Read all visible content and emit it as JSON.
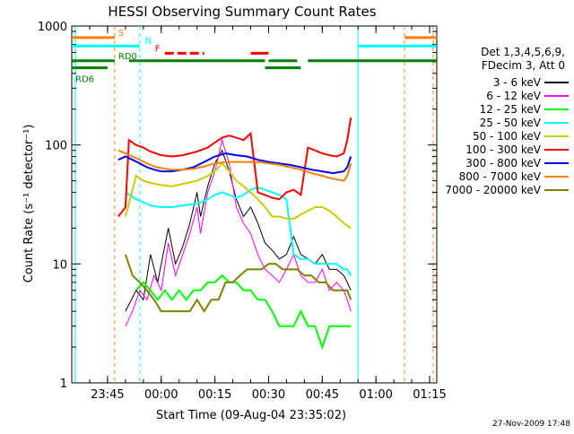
{
  "chart_data": {
    "type": "line",
    "title": "HESSI Observing Summary Count Rates",
    "xlabel": "Start Time (09-Aug-04 23:35:02)",
    "ylabel": "Count Rate (s⁻¹ detector⁻¹)",
    "y_scale": "log",
    "xlim_minutes": [
      0,
      102
    ],
    "ylim": [
      1,
      1000
    ],
    "x_ticks": [
      {
        "label": "23:45",
        "min": 10
      },
      {
        "label": "00:00",
        "min": 25
      },
      {
        "label": "00:15",
        "min": 40
      },
      {
        "label": "00:30",
        "min": 55
      },
      {
        "label": "00:45",
        "min": 70
      },
      {
        "label": "01:00",
        "min": 85
      },
      {
        "label": "01:15",
        "min": 100
      }
    ],
    "y_ticks": [
      {
        "label": "1",
        "value": 1
      },
      {
        "label": "10",
        "value": 10
      },
      {
        "label": "100",
        "value": 100
      },
      {
        "label": "1000",
        "value": 1000
      }
    ],
    "legend_header": [
      "Det 1,3,4,5,6,9,",
      "FDecim 3, Att 0"
    ],
    "legend_position": "right",
    "series": [
      {
        "name": "3 - 6 keV",
        "color": "#000000",
        "x": [
          15,
          18,
          20,
          22,
          24,
          25,
          27,
          29,
          31,
          33,
          35,
          36,
          38,
          40,
          42,
          44,
          46,
          48,
          50,
          52,
          54,
          56,
          58,
          60,
          62,
          64,
          66,
          68,
          70,
          72,
          74,
          76,
          77,
          78
        ],
        "y": [
          4,
          6,
          5,
          12,
          7,
          10,
          20,
          10,
          14,
          22,
          40,
          25,
          45,
          70,
          90,
          60,
          35,
          25,
          30,
          22,
          15,
          13,
          11,
          12,
          17,
          12,
          11,
          10,
          12,
          9,
          9,
          8,
          7,
          6
        ]
      },
      {
        "name": "6 - 12 keV",
        "color": "#ff00ff",
        "x": [
          15,
          17,
          19,
          21,
          23,
          25,
          27,
          29,
          31,
          33,
          35,
          36,
          38,
          40,
          42,
          44,
          46,
          48,
          50,
          52,
          54,
          56,
          58,
          60,
          62,
          64,
          66,
          68,
          70,
          72,
          74,
          76,
          77,
          78
        ],
        "y": [
          3,
          4,
          6,
          5,
          8,
          6,
          15,
          8,
          12,
          18,
          30,
          18,
          40,
          60,
          110,
          70,
          30,
          22,
          18,
          12,
          9,
          8,
          7,
          9,
          12,
          8,
          7,
          7,
          9,
          6,
          7,
          6,
          5,
          4
        ]
      },
      {
        "name": "12 - 25 keV",
        "color": "#00ff00",
        "x": [
          18,
          20,
          22,
          24,
          26,
          28,
          30,
          32,
          34,
          36,
          38,
          40,
          42,
          44,
          46,
          48,
          50,
          52,
          54,
          56,
          58,
          60,
          62,
          64,
          66,
          68,
          70,
          72,
          74,
          76,
          78
        ],
        "y": [
          6,
          7,
          6,
          5,
          6,
          5,
          6,
          5,
          6,
          6,
          7,
          7,
          8,
          7,
          7,
          6,
          6,
          5,
          5,
          4,
          3,
          3,
          3,
          4,
          3,
          3,
          2,
          3,
          3,
          3,
          3
        ]
      },
      {
        "name": "25 - 50 keV",
        "color": "#00ffff",
        "x": [
          15,
          18,
          20,
          22,
          25,
          28,
          31,
          35,
          38,
          40,
          42,
          44,
          46,
          48,
          50,
          52,
          54,
          56,
          58,
          60,
          62,
          64,
          66,
          68,
          70,
          72,
          74,
          76,
          77,
          78
        ],
        "y": [
          40,
          35,
          33,
          31,
          30,
          30,
          31,
          32,
          35,
          38,
          40,
          38,
          36,
          38,
          42,
          44,
          42,
          40,
          38,
          35,
          12,
          11,
          11,
          10,
          10,
          10,
          10,
          9,
          9,
          8
        ]
      },
      {
        "name": "50 - 100 keV",
        "color": "#cccc00",
        "x": [
          15,
          18,
          20,
          22,
          25,
          28,
          31,
          35,
          38,
          40,
          42,
          44,
          46,
          48,
          50,
          52,
          54,
          56,
          58,
          60,
          62,
          64,
          66,
          68,
          70,
          72,
          74,
          76,
          78
        ],
        "y": [
          25,
          55,
          50,
          48,
          46,
          45,
          47,
          50,
          55,
          60,
          70,
          60,
          50,
          45,
          40,
          35,
          30,
          25,
          25,
          24,
          24,
          26,
          28,
          30,
          30,
          28,
          25,
          22,
          20
        ]
      },
      {
        "name": "100 - 300 keV",
        "color": "#ff0000",
        "x": [
          13,
          15,
          16,
          18,
          20,
          22,
          25,
          28,
          31,
          35,
          38,
          40,
          42,
          44,
          46,
          48,
          50,
          52,
          54,
          56,
          58,
          60,
          62,
          64,
          66,
          68,
          70,
          72,
          74,
          76,
          77,
          78
        ],
        "y": [
          25,
          30,
          110,
          100,
          95,
          88,
          82,
          80,
          82,
          88,
          95,
          105,
          115,
          120,
          115,
          110,
          125,
          40,
          38,
          36,
          35,
          40,
          42,
          38,
          95,
          90,
          85,
          82,
          80,
          85,
          110,
          170
        ]
      },
      {
        "name": "300 - 800 keV",
        "color": "#0000ff",
        "x": [
          13,
          15,
          17,
          19,
          21,
          23,
          25,
          28,
          31,
          34,
          37,
          40,
          43,
          46,
          49,
          52,
          55,
          58,
          61,
          64,
          67,
          70,
          73,
          76,
          77,
          78
        ],
        "y": [
          75,
          80,
          75,
          70,
          65,
          62,
          60,
          60,
          62,
          65,
          72,
          80,
          85,
          82,
          80,
          75,
          72,
          70,
          68,
          65,
          62,
          60,
          58,
          60,
          65,
          80
        ]
      },
      {
        "name": "800 - 7000 keV",
        "color": "#ff8000",
        "x": [
          13,
          15,
          17,
          19,
          21,
          23,
          25,
          28,
          31,
          34,
          37,
          40,
          43,
          46,
          49,
          52,
          55,
          58,
          61,
          64,
          67,
          70,
          73,
          76,
          77,
          78
        ],
        "y": [
          90,
          85,
          80,
          75,
          70,
          66,
          64,
          62,
          62,
          63,
          66,
          70,
          72,
          72,
          72,
          72,
          70,
          68,
          65,
          62,
          58,
          55,
          52,
          50,
          55,
          70
        ]
      },
      {
        "name": "7000 - 20000 keV",
        "color": "#808000",
        "x": [
          15,
          17,
          19,
          21,
          23,
          25,
          27,
          29,
          31,
          33,
          35,
          37,
          39,
          41,
          43,
          45,
          47,
          49,
          51,
          53,
          55,
          57,
          59,
          61,
          63,
          65,
          67,
          69,
          71,
          73,
          75,
          77,
          78
        ],
        "y": [
          12,
          8,
          7,
          6,
          5,
          4,
          4,
          4,
          4,
          4,
          5,
          4,
          5,
          5,
          7,
          7,
          8,
          9,
          9,
          9,
          10,
          10,
          9,
          9,
          9,
          8,
          8,
          7,
          7,
          6,
          6,
          6,
          5
        ]
      }
    ],
    "state_bars": [
      {
        "label": "S",
        "color": "#ff8000",
        "y": 800,
        "segments": [
          [
            0,
            12
          ],
          [
            93,
            102
          ]
        ]
      },
      {
        "label": "N",
        "color": "#00ffff",
        "y": 680,
        "segments": [
          [
            0,
            19
          ],
          [
            80,
            102
          ]
        ]
      },
      {
        "label": "F",
        "color": "#ff0000",
        "y": 590,
        "segments": [
          [
            26,
            37
          ],
          [
            50,
            55
          ]
        ]
      },
      {
        "label": "RD0",
        "color": "#008000",
        "y": 510,
        "segments": [
          [
            0,
            12
          ],
          [
            16,
            54
          ],
          [
            55,
            63
          ],
          [
            66,
            102
          ]
        ]
      },
      {
        "label": "RD6",
        "color": "#008000",
        "y": 445,
        "segments": [
          [
            0,
            10
          ],
          [
            54,
            64
          ]
        ]
      }
    ],
    "footer": "27-Nov-2009 17:48"
  }
}
